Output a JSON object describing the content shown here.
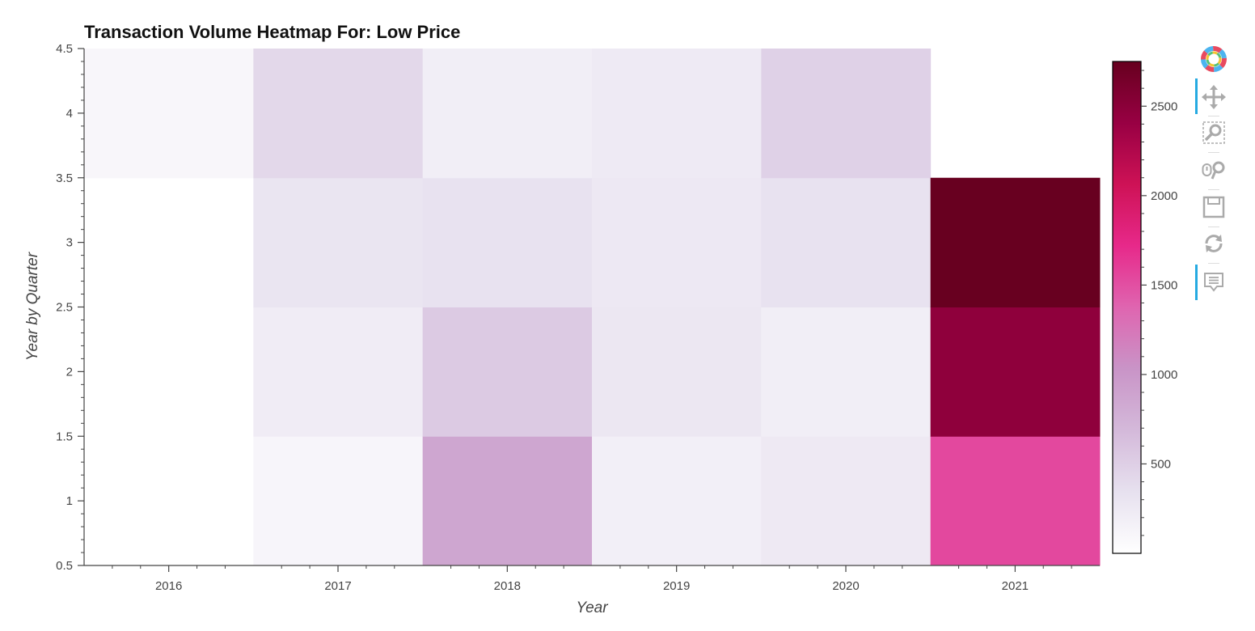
{
  "chart_data": {
    "type": "heatmap",
    "title": "Transaction Volume Heatmap For: Low Price",
    "xlabel": "Year",
    "ylabel": "Year by Quarter",
    "x_categories": [
      "2016",
      "2017",
      "2018",
      "2019",
      "2020",
      "2021"
    ],
    "y_categories": [
      1,
      2,
      3,
      4
    ],
    "ylim": [
      0.5,
      4.5
    ],
    "y_ticks": [
      "0.5",
      "1",
      "1.5",
      "2",
      "2.5",
      "3",
      "3.5",
      "4",
      "4.5"
    ],
    "cells": [
      {
        "x": "2016",
        "y": 4,
        "value": 100
      },
      {
        "x": "2017",
        "y": 1,
        "value": 110
      },
      {
        "x": "2017",
        "y": 2,
        "value": 220
      },
      {
        "x": "2017",
        "y": 3,
        "value": 300
      },
      {
        "x": "2017",
        "y": 4,
        "value": 420
      },
      {
        "x": "2018",
        "y": 1,
        "value": 860
      },
      {
        "x": "2018",
        "y": 2,
        "value": 540
      },
      {
        "x": "2018",
        "y": 3,
        "value": 330
      },
      {
        "x": "2018",
        "y": 4,
        "value": 200
      },
      {
        "x": "2019",
        "y": 1,
        "value": 180
      },
      {
        "x": "2019",
        "y": 2,
        "value": 270
      },
      {
        "x": "2019",
        "y": 3,
        "value": 260
      },
      {
        "x": "2019",
        "y": 4,
        "value": 240
      },
      {
        "x": "2020",
        "y": 1,
        "value": 250
      },
      {
        "x": "2020",
        "y": 2,
        "value": 200
      },
      {
        "x": "2020",
        "y": 3,
        "value": 330
      },
      {
        "x": "2020",
        "y": 4,
        "value": 480
      },
      {
        "x": "2021",
        "y": 1,
        "value": 1540
      },
      {
        "x": "2021",
        "y": 2,
        "value": 2470
      },
      {
        "x": "2021",
        "y": 3,
        "value": 2740
      }
    ],
    "colorbar": {
      "range": [
        0,
        2750
      ],
      "ticks": [
        500,
        1000,
        1500,
        2000,
        2500
      ],
      "palette": [
        "#ffffff",
        "#e7e1ef",
        "#d4b9da",
        "#c994c7",
        "#df65b0",
        "#e7298a",
        "#ce1256",
        "#980043",
        "#67001f"
      ]
    }
  },
  "toolbar": {
    "items": [
      {
        "name": "bokeh-logo-icon",
        "active": false
      },
      {
        "name": "pan-icon",
        "active": true
      },
      {
        "name": "box-zoom-icon",
        "active": false
      },
      {
        "name": "wheel-zoom-icon",
        "active": false
      },
      {
        "name": "save-icon",
        "active": false
      },
      {
        "name": "reset-icon",
        "active": false
      },
      {
        "name": "hover-icon",
        "active": true
      }
    ]
  },
  "colors": {
    "axis": "#444444",
    "toolbar_active": "#26aae1",
    "icon": "#aaaaaa"
  }
}
